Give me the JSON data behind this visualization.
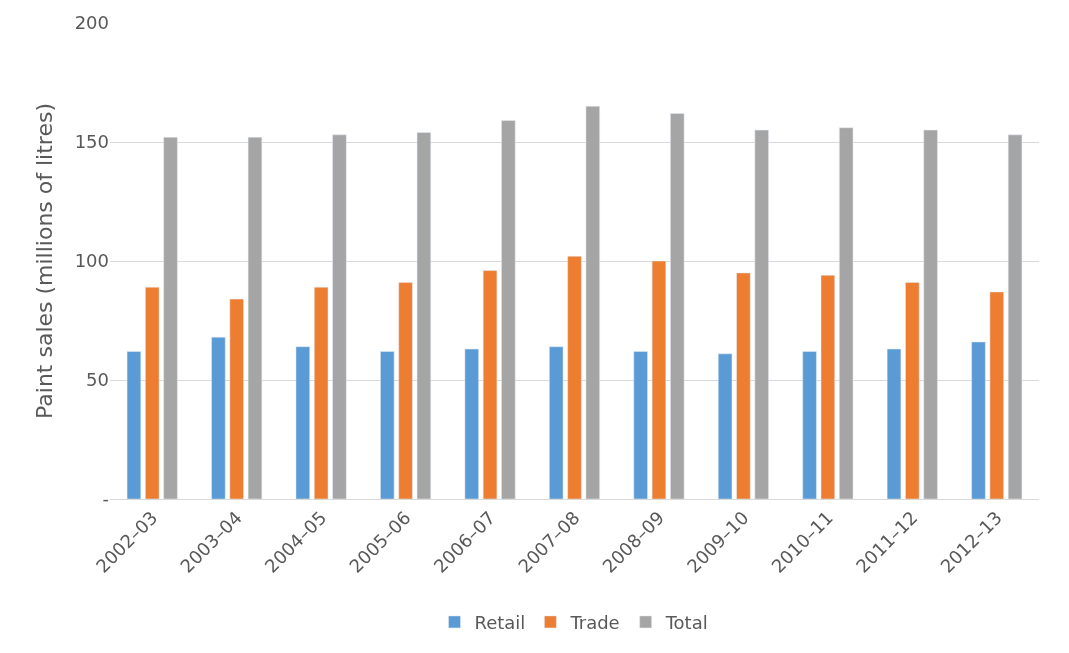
{
  "chart_data": {
    "type": "bar",
    "ylabel": "Paint sales (millions of litres)",
    "categories": [
      "2002–03",
      "2003–04",
      "2004–05",
      "2005–06",
      "2006–07",
      "2007–08",
      "2008–09",
      "2009–10",
      "2010–11",
      "2011–12",
      "2012–13"
    ],
    "series": [
      {
        "name": "Retail",
        "color": "#5b9bd5",
        "values": [
          62,
          68,
          64,
          62,
          63,
          64,
          62,
          61,
          62,
          63,
          66
        ]
      },
      {
        "name": "Trade",
        "color": "#ed7d31",
        "values": [
          89,
          84,
          89,
          91,
          96,
          102,
          100,
          95,
          94,
          91,
          87
        ]
      },
      {
        "name": "Total",
        "color": "#a5a5a5",
        "values": [
          152,
          152,
          153,
          154,
          159,
          165,
          162,
          155,
          156,
          155,
          153
        ]
      }
    ],
    "ylim": [
      0,
      200
    ],
    "yticks": [
      {
        "value": 0,
        "label": "-"
      },
      50,
      100,
      150,
      200
    ],
    "grid": "y",
    "legend": "bottom"
  }
}
